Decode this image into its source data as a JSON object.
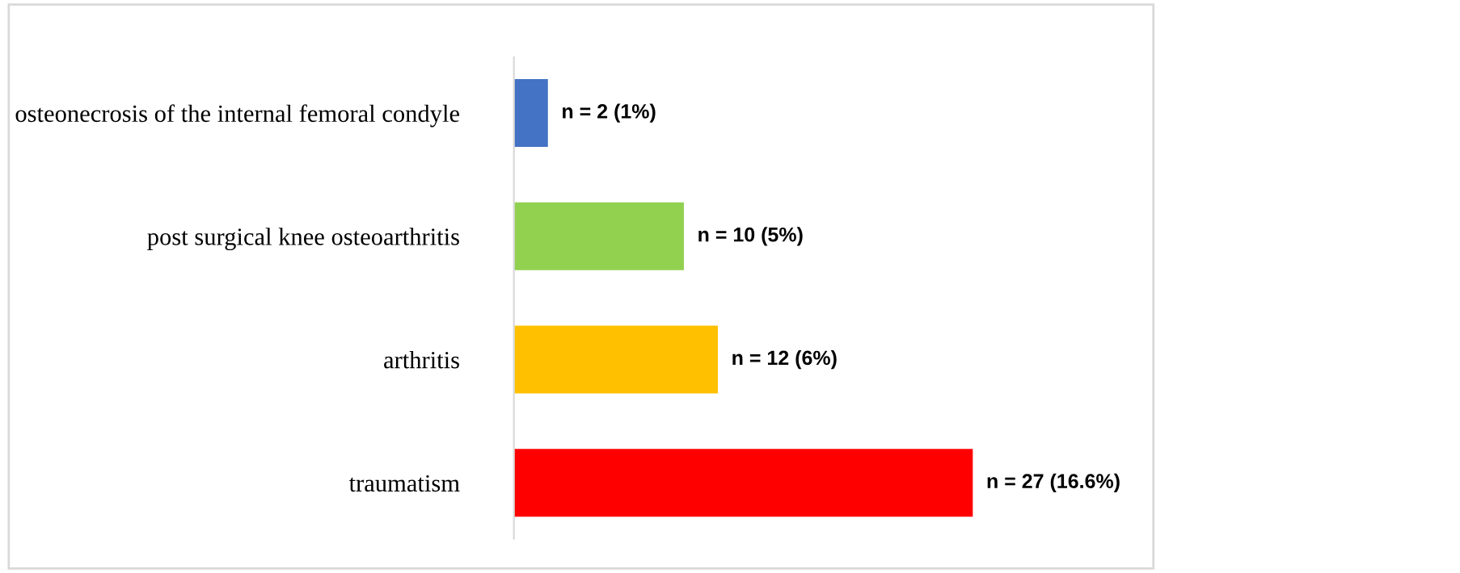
{
  "chart_data": {
    "type": "bar",
    "orientation": "horizontal",
    "categories": [
      "osteonecrosis of the internal femoral condyle",
      "post surgical knee osteoarthritis",
      "arthritis",
      "traumatism"
    ],
    "values": [
      2,
      10,
      12,
      27
    ],
    "colors": [
      "#4472c4",
      "#92d050",
      "#ffc000",
      "#ff0000"
    ],
    "value_labels": [
      "n = 2 (1%)",
      "n = 10 (5%)",
      "n = 12 (6%)",
      "n = 27 (16.6%)"
    ]
  }
}
